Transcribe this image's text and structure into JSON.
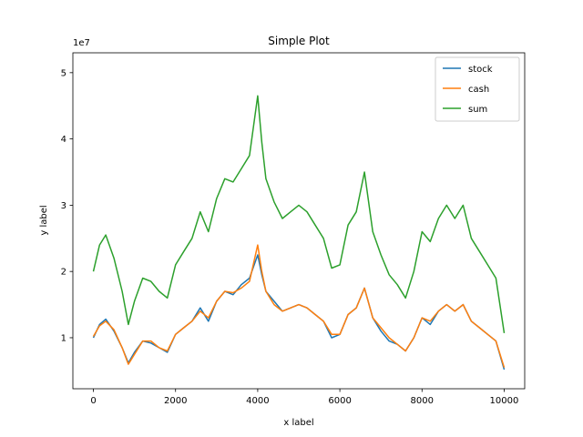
{
  "chart_data": {
    "type": "line",
    "title": "Simple Plot",
    "xlabel": "x label",
    "ylabel": "y label",
    "y_offset_text": "1e7",
    "xlim": [
      -500,
      10500
    ],
    "ylim": [
      2300000,
      53000000
    ],
    "x_ticks": [
      0,
      2000,
      4000,
      6000,
      8000,
      10000
    ],
    "x_tick_labels": [
      "0",
      "2000",
      "4000",
      "6000",
      "8000",
      "10000"
    ],
    "y_ticks": [
      10000000,
      20000000,
      30000000,
      40000000,
      50000000
    ],
    "y_tick_labels": [
      "1",
      "2",
      "3",
      "4",
      "5"
    ],
    "grid": false,
    "legend_position": "top-right",
    "series": [
      {
        "name": "stock",
        "color": "#1f77b4",
        "x": [
          0,
          150,
          300,
          500,
          700,
          850,
          1000,
          1200,
          1400,
          1600,
          1800,
          2000,
          2200,
          2400,
          2600,
          2800,
          3000,
          3200,
          3400,
          3600,
          3800,
          4000,
          4100,
          4200,
          4400,
          4600,
          4800,
          5000,
          5200,
          5400,
          5600,
          5800,
          6000,
          6200,
          6400,
          6600,
          6800,
          7000,
          7200,
          7400,
          7600,
          7800,
          8000,
          8200,
          8400,
          8600,
          8800,
          9000,
          9200,
          9400,
          9600,
          9800,
          10000
        ],
        "values": [
          10000000,
          12000000,
          12800000,
          11000000,
          8500000,
          6200000,
          7800000,
          9500000,
          9200000,
          8500000,
          7800000,
          10500000,
          11500000,
          12500000,
          14500000,
          12500000,
          15500000,
          17000000,
          16500000,
          18000000,
          19000000,
          22500000,
          19500000,
          17000000,
          15500000,
          14000000,
          14500000,
          15000000,
          14500000,
          13500000,
          12500000,
          10000000,
          10500000,
          13500000,
          14500000,
          17500000,
          13000000,
          11000000,
          9500000,
          9000000,
          8000000,
          10000000,
          13000000,
          12000000,
          14000000,
          15000000,
          14000000,
          15000000,
          12500000,
          11500000,
          10500000,
          9500000,
          5200000
        ]
      },
      {
        "name": "cash",
        "color": "#ff7f0e",
        "x": [
          0,
          150,
          300,
          500,
          700,
          850,
          1000,
          1200,
          1400,
          1600,
          1800,
          2000,
          2200,
          2400,
          2600,
          2800,
          3000,
          3200,
          3400,
          3600,
          3800,
          4000,
          4100,
          4200,
          4400,
          4600,
          4800,
          5000,
          5200,
          5400,
          5600,
          5800,
          6000,
          6200,
          6400,
          6600,
          6800,
          7000,
          7200,
          7400,
          7600,
          7800,
          8000,
          8200,
          8400,
          8600,
          8800,
          9000,
          9200,
          9400,
          9600,
          9800,
          10000
        ],
        "values": [
          10200000,
          11800000,
          12500000,
          11200000,
          8500000,
          6000000,
          7500000,
          9500000,
          9500000,
          8500000,
          8000000,
          10500000,
          11500000,
          12500000,
          14000000,
          13000000,
          15500000,
          17000000,
          16800000,
          17500000,
          18500000,
          24000000,
          20000000,
          17000000,
          15000000,
          14000000,
          14500000,
          15000000,
          14500000,
          13500000,
          12500000,
          10500000,
          10500000,
          13500000,
          14500000,
          17500000,
          13000000,
          11500000,
          10000000,
          9000000,
          8000000,
          10000000,
          13000000,
          12500000,
          14000000,
          15000000,
          14000000,
          15000000,
          12500000,
          11500000,
          10500000,
          9500000,
          5500000
        ]
      },
      {
        "name": "sum",
        "color": "#2ca02c",
        "x": [
          0,
          150,
          300,
          500,
          700,
          850,
          1000,
          1200,
          1400,
          1600,
          1800,
          2000,
          2200,
          2400,
          2600,
          2800,
          3000,
          3200,
          3400,
          3600,
          3800,
          4000,
          4100,
          4200,
          4400,
          4600,
          4800,
          5000,
          5200,
          5400,
          5600,
          5800,
          6000,
          6200,
          6400,
          6600,
          6800,
          7000,
          7200,
          7400,
          7600,
          7800,
          8000,
          8200,
          8400,
          8600,
          8800,
          9000,
          9200,
          9400,
          9600,
          9800,
          10000
        ],
        "values": [
          20000000,
          24000000,
          25500000,
          22000000,
          17000000,
          12000000,
          15500000,
          19000000,
          18500000,
          17000000,
          16000000,
          21000000,
          23000000,
          25000000,
          29000000,
          26000000,
          31000000,
          34000000,
          33500000,
          35500000,
          37500000,
          46500000,
          39500000,
          34000000,
          30500000,
          28000000,
          29000000,
          30000000,
          29000000,
          27000000,
          25000000,
          20500000,
          21000000,
          27000000,
          29000000,
          35000000,
          26000000,
          22500000,
          19500000,
          18000000,
          16000000,
          20000000,
          26000000,
          24500000,
          28000000,
          30000000,
          28000000,
          30000000,
          25000000,
          23000000,
          21000000,
          19000000,
          10700000
        ]
      }
    ]
  }
}
